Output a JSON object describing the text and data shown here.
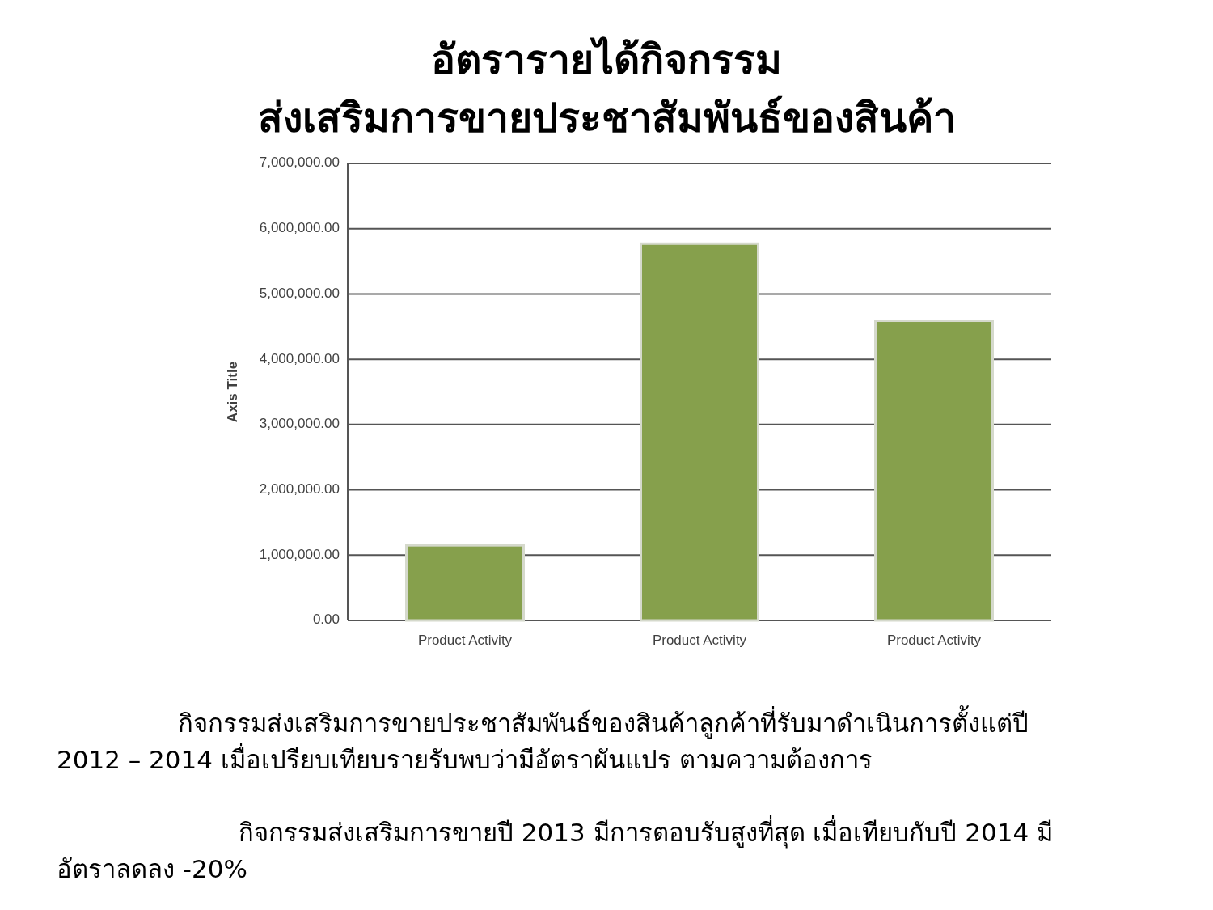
{
  "chart_data": {
    "type": "bar",
    "title": "อัตรารายได้กิจกรรม\nส่งเสริมการขายประชาสัมพันธ์ของสินค้า",
    "ylabel": "Axis Title",
    "categories": [
      "Product Activity",
      "Product Activity",
      "Product Activity"
    ],
    "values": [
      1150000,
      5770000,
      4590000
    ],
    "color": "#86a04c",
    "ylim": [
      0,
      7000000
    ],
    "yticks": [
      {
        "value": 0,
        "label": "0.00"
      },
      {
        "value": 1000000,
        "label": "1,000,000.00"
      },
      {
        "value": 2000000,
        "label": "2,000,000.00"
      },
      {
        "value": 3000000,
        "label": "3,000,000.00"
      },
      {
        "value": 4000000,
        "label": "4,000,000.00"
      },
      {
        "value": 5000000,
        "label": "5,000,000.00"
      },
      {
        "value": 6000000,
        "label": "6,000,000.00"
      },
      {
        "value": 7000000,
        "label": "7,000,000.00"
      }
    ],
    "grid": "y",
    "annotations": [
      "กิจกรรมส่งเสริมการขายประชาสัมพันธ์ของสินค้าลูกค้าที่รับมาดำเนินการตั้งแต่ปี 2012 – 2014 เมื่อเปรียบเทียบรายรับพบว่ามีอัตราผันแปร ตามความต้องการ",
      "กิจกรรมส่งเสริมการขายปี 2013 มีการตอบรับสูงที่สุด เมื่อเทียบกับปี 2014 มีอัตราลดลง -20%"
    ]
  }
}
